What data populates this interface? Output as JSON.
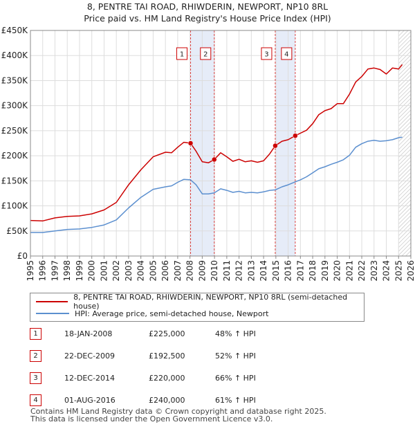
{
  "chart_data": {
    "type": "line",
    "title": "8, PENTRE TAI ROAD, RHIWDERIN, NEWPORT, NP10 8RL",
    "subtitle": "Price paid vs. HM Land Registry's House Price Index (HPI)",
    "xlim": [
      1995,
      2026
    ],
    "ylim": [
      0,
      450000
    ],
    "x_ticks": [
      "1995",
      "1996",
      "1997",
      "1998",
      "1999",
      "2000",
      "2001",
      "2002",
      "2003",
      "2004",
      "2005",
      "2006",
      "2007",
      "2008",
      "2009",
      "2010",
      "2011",
      "2012",
      "2013",
      "2014",
      "2015",
      "2016",
      "2017",
      "2018",
      "2019",
      "2020",
      "2021",
      "2022",
      "2023",
      "2024",
      "2025",
      "2026"
    ],
    "y_ticks": [
      {
        "value": 0,
        "label": "£0"
      },
      {
        "value": 50000,
        "label": "£50K"
      },
      {
        "value": 100000,
        "label": "£100K"
      },
      {
        "value": 150000,
        "label": "£150K"
      },
      {
        "value": 200000,
        "label": "£200K"
      },
      {
        "value": 250000,
        "label": "£250K"
      },
      {
        "value": 300000,
        "label": "£300K"
      },
      {
        "value": 350000,
        "label": "£350K"
      },
      {
        "value": 400000,
        "label": "£400K"
      },
      {
        "value": 450000,
        "label": "£450K"
      }
    ],
    "series": [
      {
        "name": "8, PENTRE TAI ROAD, RHIWDERIN, NEWPORT, NP10 8RL (semi-detached house)",
        "color": "#cc0000",
        "x": [
          1995,
          1996,
          1997,
          1998,
          1999,
          2000,
          2001,
          2002,
          2003,
          2004,
          2005,
          2006,
          2006.5,
          2007,
          2007.5,
          2008.05,
          2008.5,
          2009,
          2009.5,
          2009.98,
          2010.5,
          2011,
          2011.5,
          2012,
          2012.5,
          2013,
          2013.5,
          2014,
          2014.5,
          2014.95,
          2015.5,
          2016,
          2016.58,
          2017,
          2017.5,
          2018,
          2018.5,
          2019,
          2019.5,
          2020,
          2020.5,
          2021,
          2021.5,
          2022,
          2022.5,
          2023,
          2023.5,
          2024,
          2024.5,
          2025,
          2025.3
        ],
        "y": [
          71000,
          70000,
          76000,
          79000,
          80000,
          84000,
          92000,
          107000,
          142000,
          172000,
          198000,
          207000,
          206000,
          217000,
          227000,
          225000,
          209000,
          188000,
          186000,
          192500,
          206000,
          198000,
          189000,
          193000,
          188000,
          190000,
          187000,
          190000,
          204000,
          220000,
          229000,
          232000,
          240000,
          245000,
          251000,
          264000,
          282000,
          290000,
          294000,
          304000,
          304000,
          323000,
          347000,
          358000,
          373000,
          375000,
          372000,
          363000,
          375000,
          373000,
          382000
        ]
      },
      {
        "name": "HPI: Average price, semi-detached house, Newport",
        "color": "#5b8fcf",
        "x": [
          1995,
          1996,
          1997,
          1998,
          1999,
          2000,
          2001,
          2002,
          2003,
          2004,
          2005,
          2006,
          2006.5,
          2007,
          2007.5,
          2008.05,
          2008.5,
          2009,
          2009.5,
          2009.98,
          2010.5,
          2011,
          2011.5,
          2012,
          2012.5,
          2013,
          2013.5,
          2014,
          2014.5,
          2014.95,
          2015.5,
          2016,
          2016.58,
          2017,
          2017.5,
          2018,
          2018.5,
          2019,
          2019.5,
          2020,
          2020.5,
          2021,
          2021.5,
          2022,
          2022.5,
          2023,
          2023.5,
          2024,
          2024.5,
          2025,
          2025.3
        ],
        "y": [
          47000,
          47000,
          50000,
          53000,
          54000,
          57000,
          62000,
          72000,
          96000,
          117000,
          133000,
          138000,
          140000,
          147000,
          153000,
          152000,
          142000,
          124000,
          124000,
          126000,
          134000,
          131000,
          127000,
          129000,
          126000,
          127000,
          126000,
          128000,
          131000,
          132000,
          138000,
          142000,
          148000,
          152000,
          158000,
          166000,
          174000,
          178000,
          183000,
          187000,
          192000,
          201000,
          217000,
          224000,
          229000,
          231000,
          229000,
          230000,
          232000,
          236000,
          237000
        ]
      }
    ],
    "transactions": [
      {
        "id": "1",
        "x": 2008.05,
        "price": 225000
      },
      {
        "id": "2",
        "x": 2009.98,
        "price": 192500
      },
      {
        "id": "3",
        "x": 2014.95,
        "price": 220000
      },
      {
        "id": "4",
        "x": 2016.58,
        "price": 240000
      }
    ],
    "shaded_periods": [
      [
        2008.05,
        2009.98
      ],
      [
        2014.95,
        2016.58
      ]
    ],
    "hatched_after": 2025.0
  },
  "legend": {
    "property_label": "8, PENTRE TAI ROAD, RHIWDERIN, NEWPORT, NP10 8RL (semi-detached house)",
    "hpi_label": "HPI: Average price, semi-detached house, Newport"
  },
  "table": [
    {
      "id": "1",
      "date": "18-JAN-2008",
      "price": "£225,000",
      "hpi": "48% ↑ HPI"
    },
    {
      "id": "2",
      "date": "22-DEC-2009",
      "price": "£192,500",
      "hpi": "52% ↑ HPI"
    },
    {
      "id": "3",
      "date": "12-DEC-2014",
      "price": "£220,000",
      "hpi": "66% ↑ HPI"
    },
    {
      "id": "4",
      "date": "01-AUG-2016",
      "price": "£240,000",
      "hpi": "61% ↑ HPI"
    }
  ],
  "footer": {
    "line1": "Contains HM Land Registry data © Crown copyright and database right 2025.",
    "line2": "This data is licensed under the Open Government Licence v3.0."
  },
  "colors": {
    "property": "#cc0000",
    "hpi": "#5b8fcf",
    "shade": "#e6ecf8",
    "grid": "#dddddd"
  }
}
